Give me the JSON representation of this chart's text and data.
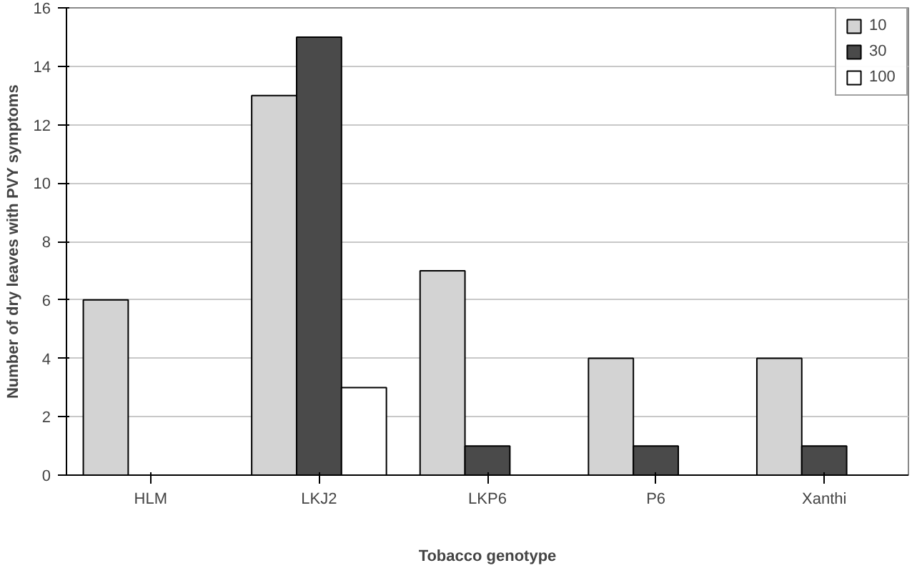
{
  "chart_data": {
    "type": "bar",
    "xlabel": "Tobacco genotype",
    "ylabel": "Number of dry leaves with PVY symptoms",
    "categories": [
      "HLM",
      "LKJ2",
      "LKP6",
      "P6",
      "Xanthi"
    ],
    "series": [
      {
        "name": "10",
        "color": "#d3d3d3",
        "values": [
          6,
          13,
          7,
          4,
          4
        ]
      },
      {
        "name": "30",
        "color": "#4a4a4a",
        "values": [
          null,
          15,
          1,
          1,
          1
        ]
      },
      {
        "name": "100",
        "color": "#ffffff",
        "values": [
          null,
          3,
          null,
          null,
          null
        ]
      }
    ],
    "ylim": [
      0,
      16
    ],
    "yticks": [
      0,
      2,
      4,
      6,
      8,
      10,
      12,
      14,
      16
    ],
    "grid": "y",
    "legend": "top right"
  }
}
